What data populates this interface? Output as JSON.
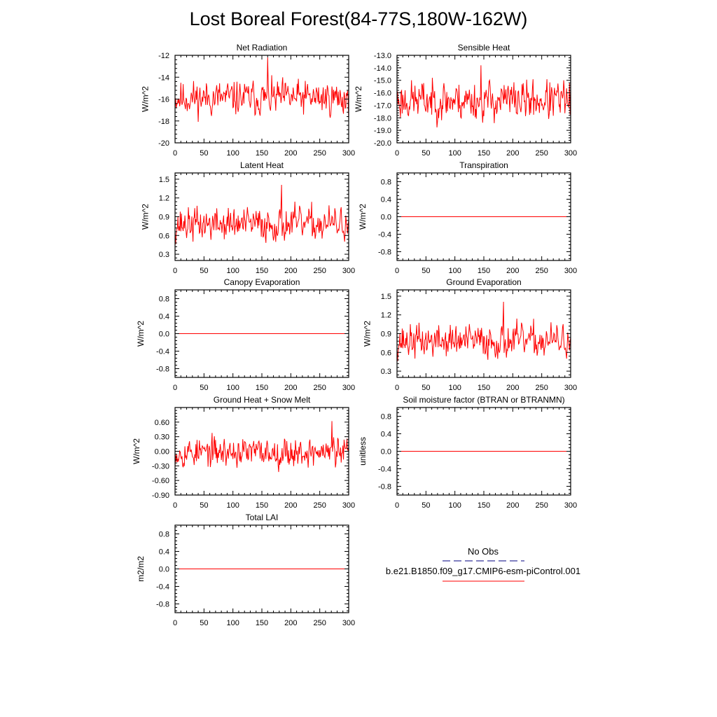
{
  "page": {
    "title": "Lost Boreal Forest(84-77S,180W-162W)"
  },
  "legend": {
    "obs_label": "No Obs",
    "model_label": "b.e21.B1850.f09_g17.CMIP6-esm-piControl.001",
    "obs_color": "#000080",
    "model_color": "#ff0000"
  },
  "chart_data": [
    {
      "type": "line",
      "title": "Net Radiation",
      "ylabel": "W/m^2",
      "xlim": [
        0,
        300
      ],
      "ylim": [
        -20,
        -12
      ],
      "xticks": [
        "0",
        "50",
        "100",
        "150",
        "200",
        "250",
        "300"
      ],
      "yticks": [
        "-12",
        "-14",
        "-16",
        "-18",
        "-20"
      ],
      "series": [
        {
          "mean": -15.9,
          "amp": 1.05,
          "seed": 11,
          "peak_x": 160,
          "peak_y": -12.2
        }
      ]
    },
    {
      "type": "line",
      "title": "Sensible Heat",
      "ylabel": "W/m^2",
      "xlim": [
        0,
        300
      ],
      "ylim": [
        -20,
        -13
      ],
      "xticks": [
        "0",
        "50",
        "100",
        "150",
        "200",
        "250",
        "300"
      ],
      "yticks": [
        "-13.0",
        "-14.0",
        "-15.0",
        "-16.0",
        "-17.0",
        "-18.0",
        "-19.0",
        "-20.0"
      ],
      "series": [
        {
          "mean": -16.6,
          "amp": 1.05,
          "seed": 23,
          "peak_x": 145,
          "peak_y": -13.8
        }
      ]
    },
    {
      "type": "line",
      "title": "Latent Heat",
      "ylabel": "W/m^2",
      "xlim": [
        0,
        300
      ],
      "ylim": [
        0.2,
        1.6
      ],
      "xticks": [
        "0",
        "50",
        "100",
        "150",
        "200",
        "250",
        "300"
      ],
      "yticks": [
        "1.5",
        "1.2",
        "0.9",
        "0.6",
        "0.3"
      ],
      "series": [
        {
          "mean": 0.78,
          "amp": 0.18,
          "seed": 37,
          "peak_x": 184,
          "peak_y": 1.41
        }
      ]
    },
    {
      "type": "line",
      "title": "Transpiration",
      "ylabel": "W/m^2",
      "xlim": [
        0,
        300
      ],
      "ylim": [
        -1,
        1
      ],
      "xticks": [
        "0",
        "50",
        "100",
        "150",
        "200",
        "250",
        "300"
      ],
      "yticks": [
        "0.8",
        "0.4",
        "0.0",
        "-0.4",
        "-0.8"
      ],
      "series": [
        {
          "constant": 0
        }
      ]
    },
    {
      "type": "line",
      "title": "Canopy Evaporation",
      "ylabel": "W/m^2",
      "xlim": [
        0,
        300
      ],
      "ylim": [
        -1,
        1
      ],
      "xticks": [
        "0",
        "50",
        "100",
        "150",
        "200",
        "250",
        "300"
      ],
      "yticks": [
        "0.8",
        "0.4",
        "0.0",
        "-0.4",
        "-0.8"
      ],
      "series": [
        {
          "constant": 0
        }
      ]
    },
    {
      "type": "line",
      "title": "Ground Evaporation",
      "ylabel": "W/m^2",
      "xlim": [
        0,
        300
      ],
      "ylim": [
        0.2,
        1.6
      ],
      "xticks": [
        "0",
        "50",
        "100",
        "150",
        "200",
        "250",
        "300"
      ],
      "yticks": [
        "1.5",
        "1.2",
        "0.9",
        "0.6",
        "0.3"
      ],
      "series": [
        {
          "mean": 0.78,
          "amp": 0.18,
          "seed": 37,
          "peak_x": 184,
          "peak_y": 1.41
        }
      ]
    },
    {
      "type": "line",
      "title": "Ground Heat + Snow Melt",
      "ylabel": "W/m^2",
      "xlim": [
        0,
        300
      ],
      "ylim": [
        -0.9,
        0.9
      ],
      "xticks": [
        "0",
        "50",
        "100",
        "150",
        "200",
        "250",
        "300"
      ],
      "yticks": [
        "0.60",
        "0.30",
        "0.00",
        "-0.30",
        "-0.60",
        "-0.90"
      ],
      "series": [
        {
          "mean": -0.02,
          "amp": 0.2,
          "seed": 53,
          "peak_x": 271,
          "peak_y": 0.62
        }
      ]
    },
    {
      "type": "line",
      "title": "Soil moisture factor (BTRAN or BTRANMN)",
      "ylabel": "unitless",
      "xlim": [
        0,
        300
      ],
      "ylim": [
        -1,
        1
      ],
      "xticks": [
        "0",
        "50",
        "100",
        "150",
        "200",
        "250",
        "300"
      ],
      "yticks": [
        "0.8",
        "0.4",
        "0.0",
        "-0.4",
        "-0.8"
      ],
      "series": [
        {
          "constant": 0
        }
      ]
    },
    {
      "type": "line",
      "title": "Total LAI",
      "ylabel": "m2/m2",
      "xlim": [
        0,
        300
      ],
      "ylim": [
        -1,
        1
      ],
      "xticks": [
        "0",
        "50",
        "100",
        "150",
        "200",
        "250",
        "300"
      ],
      "yticks": [
        "0.8",
        "0.4",
        "0.0",
        "-0.4",
        "-0.8"
      ],
      "series": [
        {
          "constant": 0
        }
      ]
    }
  ]
}
